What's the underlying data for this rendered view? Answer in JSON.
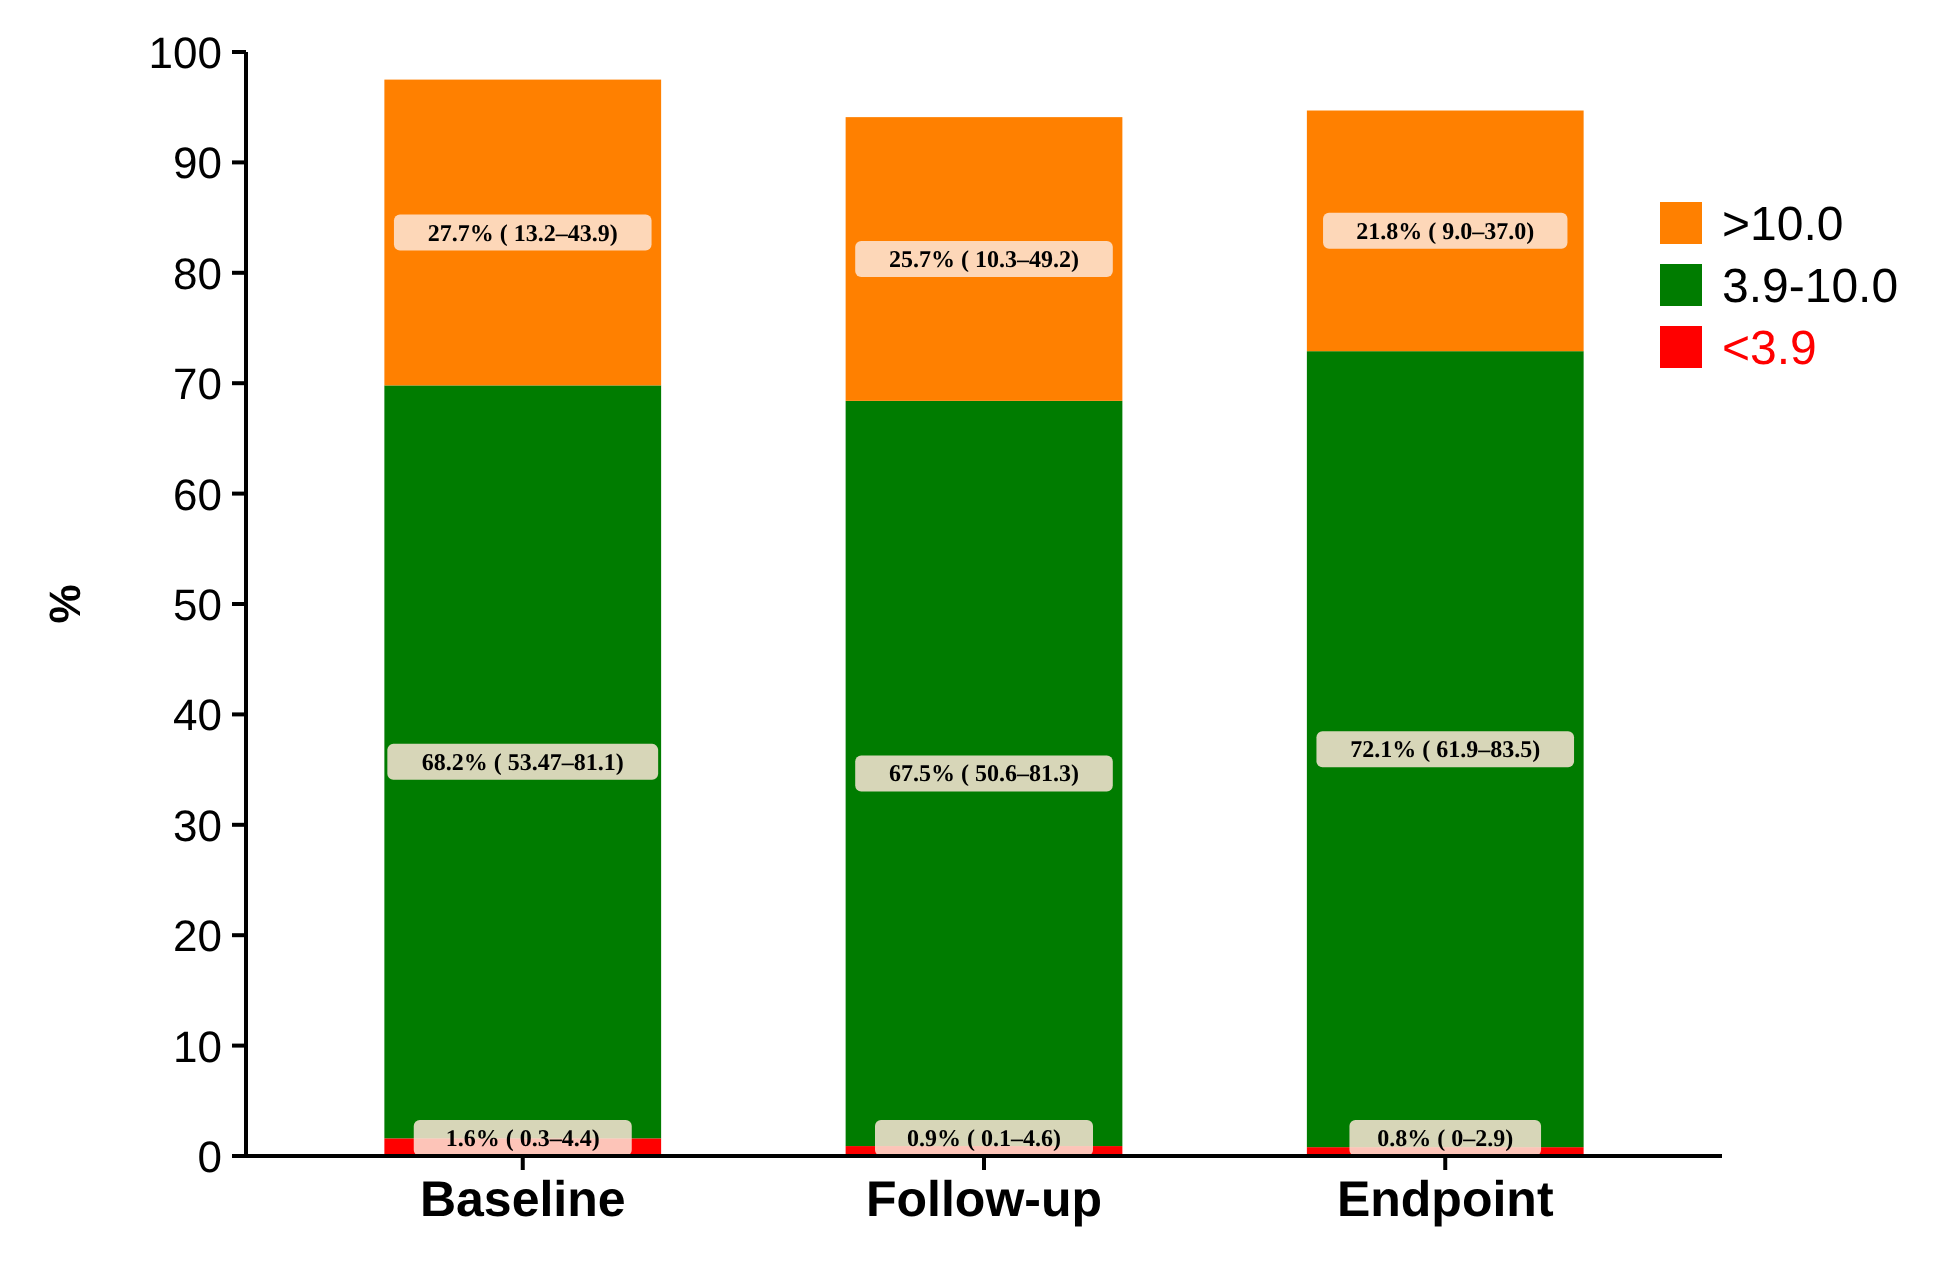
{
  "chart_data": {
    "type": "bar",
    "stacked": true,
    "categories": [
      "Baseline",
      "Follow-up",
      "Endpoint"
    ],
    "ylabel": "%",
    "ylim": [
      0,
      100
    ],
    "yticks": [
      0,
      10,
      20,
      30,
      40,
      50,
      60,
      70,
      80,
      90,
      100
    ],
    "legend": "right",
    "grid": false,
    "series": [
      {
        "name": "<3.9",
        "color": "#ff0000",
        "values": [
          1.6,
          0.9,
          0.8
        ],
        "value_labels": [
          "1.6% ( 0.3–4.4)",
          "0.9% ( 0.1–4.6)",
          "0.8% ( 0–2.9)"
        ]
      },
      {
        "name": "3.9-10.0",
        "color": "#007c00",
        "values": [
          68.2,
          67.5,
          72.1
        ],
        "value_labels": [
          "68.2% ( 53.47–81.1)",
          "67.5% ( 50.6–81.3)",
          "72.1% ( 61.9–83.5)"
        ]
      },
      {
        "name": ">10.0",
        "color": "#ff8000",
        "values": [
          27.7,
          25.7,
          21.8
        ],
        "value_labels": [
          "27.7% ( 13.2–43.9)",
          "25.7% ( 10.3–49.2)",
          "21.8% ( 9.0–37.0)"
        ]
      }
    ]
  }
}
